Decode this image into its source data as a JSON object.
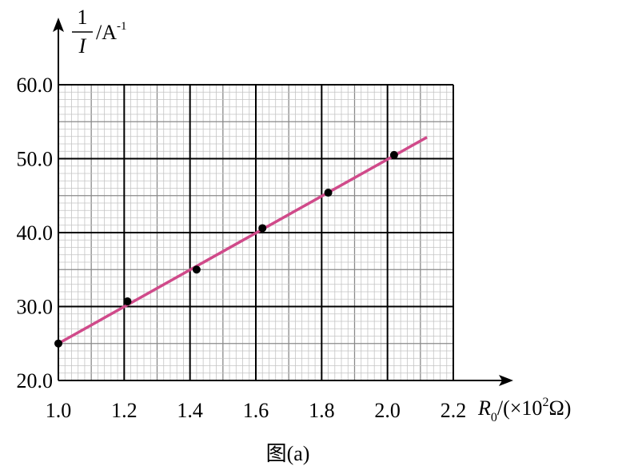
{
  "chart_data": {
    "type": "scatter",
    "xlabel": {
      "symbol": "R",
      "subscript": "0",
      "unit": "/(×10",
      "unit_exp": "2",
      "unit_end": "Ω)"
    },
    "ylabel": {
      "numerator": "1",
      "denominator": "I",
      "unit": "/A",
      "unit_exp": "-1"
    },
    "caption": "图(a)",
    "x": [
      1.0,
      1.21,
      1.42,
      1.62,
      1.82,
      2.02
    ],
    "values": [
      25.0,
      30.7,
      35.0,
      40.6,
      45.4,
      50.5
    ],
    "color": "#000000",
    "fit_line": {
      "x": [
        1.0,
        2.12
      ],
      "values": [
        25.0,
        52.9
      ],
      "color": "#d04a8a"
    },
    "xlim": [
      1.0,
      2.2
    ],
    "ylim": [
      20,
      60
    ],
    "xticks": [
      {
        "value": 1.0,
        "label": "1.0"
      },
      {
        "value": 1.2,
        "label": "1.2"
      },
      {
        "value": 1.4,
        "label": "1.4"
      },
      {
        "value": 1.6,
        "label": "1.6"
      },
      {
        "value": 1.8,
        "label": "1.8"
      },
      {
        "value": 2.0,
        "label": "2.0"
      },
      {
        "value": 2.2,
        "label": "2.2"
      }
    ],
    "yticks": [
      {
        "value": 20,
        "label": "20.0"
      },
      {
        "value": 30,
        "label": "30.0"
      },
      {
        "value": 40,
        "label": "40.0"
      },
      {
        "value": 50,
        "label": "50.0"
      },
      {
        "value": 60,
        "label": "60.0"
      }
    ],
    "grid": true
  }
}
